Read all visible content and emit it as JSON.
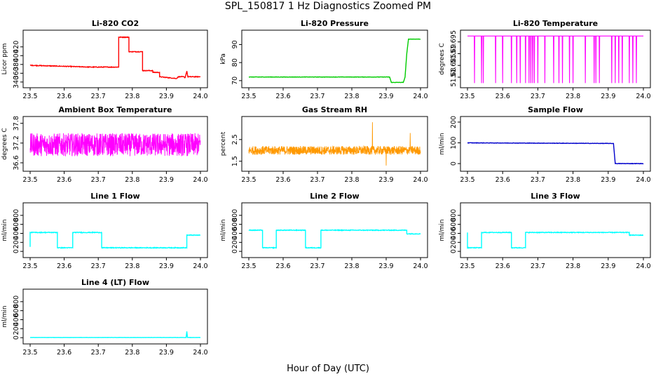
{
  "figure": {
    "title": "SPL_150817  1 Hz Diagnostics Zoomed PM",
    "xlabel": "Hour of Day (UTC)"
  },
  "chart_data": [
    {
      "type": "line",
      "title": "Li-820 CO2",
      "ylabel": "Licor ppm",
      "color": "#ff0000",
      "xlim": [
        23.5,
        24.0
      ],
      "ylim": [
        335,
        450
      ],
      "xticks": [
        23.5,
        23.6,
        23.7,
        23.8,
        23.9,
        24.0
      ],
      "yticks": [
        340,
        360,
        380,
        400,
        420
      ],
      "noise": 0.8,
      "series": [
        {
          "x": [
            23.5,
            23.68,
            23.76,
            23.76,
            23.79,
            23.79,
            23.83,
            23.83,
            23.86,
            23.86,
            23.88,
            23.88,
            23.93,
            23.935,
            23.95,
            23.955,
            23.96,
            23.963,
            23.97,
            24.0
          ],
          "y": [
            378,
            374,
            374,
            442,
            442,
            409,
            409,
            366,
            366,
            362,
            362,
            352,
            348,
            352,
            352,
            350,
            365,
            352,
            352,
            352
          ]
        }
      ]
    },
    {
      "type": "line",
      "title": "Li-820 Pressure",
      "ylabel": "kPa",
      "color": "#00cc00",
      "xlim": [
        23.5,
        24.0
      ],
      "ylim": [
        68,
        96
      ],
      "xticks": [
        23.5,
        23.6,
        23.7,
        23.8,
        23.9,
        24.0
      ],
      "yticks": [
        70,
        80,
        90
      ],
      "noise": 0.1,
      "series": [
        {
          "x": [
            23.5,
            23.91,
            23.915,
            23.95,
            23.955,
            23.96,
            23.965,
            23.97,
            24.0
          ],
          "y": [
            72,
            72,
            69,
            69,
            72,
            85,
            93,
            93,
            93
          ]
        }
      ]
    },
    {
      "type": "line",
      "title": "Li-820 Temperature",
      "ylabel": "degrees C",
      "color": "#ff00ff",
      "xlim": [
        23.5,
        24.0
      ],
      "ylim": [
        51.677,
        51.6985
      ],
      "xticks": [
        23.5,
        23.6,
        23.7,
        23.8,
        23.9,
        24.0
      ],
      "yticks": [
        51.68,
        51.685,
        51.69,
        51.695
      ],
      "baseline": 51.6975,
      "dropouts": [
        23.52,
        23.54,
        23.545,
        23.58,
        23.6,
        23.625,
        23.64,
        23.65,
        23.665,
        23.675,
        23.68,
        23.685,
        23.69,
        23.7,
        23.72,
        23.745,
        23.76,
        23.77,
        23.79,
        23.8,
        23.835,
        23.86,
        23.865,
        23.875,
        23.91,
        23.92,
        23.93,
        23.94,
        23.96,
        23.97,
        23.98
      ]
    },
    {
      "type": "line",
      "title": "Ambient Box Temperature",
      "ylabel": "degrees C",
      "color": "#ff00ff",
      "xlim": [
        23.5,
        24.0
      ],
      "ylim": [
        36.45,
        37.9
      ],
      "xticks": [
        23.5,
        23.6,
        23.7,
        23.8,
        23.9,
        24.0
      ],
      "yticks": [
        36.6,
        37.2,
        37.8
      ],
      "noise_band": [
        36.6,
        37.8
      ],
      "center": 37.15,
      "amp": 0.35
    },
    {
      "type": "line",
      "title": "Gas Stream RH",
      "ylabel": "percent",
      "color": "#ff9900",
      "xlim": [
        23.5,
        24.0
      ],
      "ylim": [
        1.2,
        3.4
      ],
      "xticks": [
        23.5,
        23.6,
        23.7,
        23.8,
        23.9,
        24.0
      ],
      "yticks": [
        1.5,
        2.5
      ],
      "center": 2.0,
      "amp": 0.2,
      "spikes": [
        {
          "x": 23.86,
          "y": 3.3
        },
        {
          "x": 23.9,
          "y": 1.3
        },
        {
          "x": 23.97,
          "y": 2.8
        }
      ]
    },
    {
      "type": "line",
      "title": "Sample Flow",
      "ylabel": "ml/min",
      "color": "#0000cc",
      "xlim": [
        23.5,
        24.0
      ],
      "ylim": [
        -20,
        210
      ],
      "xticks": [
        23.5,
        23.6,
        23.7,
        23.8,
        23.9,
        24.0
      ],
      "yticks": [
        0,
        100,
        200
      ],
      "noise": 1.0,
      "series": [
        {
          "x": [
            23.5,
            23.91,
            23.915,
            23.92,
            24.0
          ],
          "y": [
            100,
            97,
            97,
            0,
            0
          ]
        }
      ]
    },
    {
      "type": "line",
      "title": "Line 1 Flow",
      "ylabel": "ml/min",
      "color": "#00ffff",
      "xlim": [
        23.5,
        24.0
      ],
      "ylim": [
        -60,
        1000
      ],
      "xticks": [
        23.5,
        23.6,
        23.7,
        23.8,
        23.9,
        24.0
      ],
      "yticks": [
        0,
        200,
        400,
        600,
        800
      ],
      "noise": 8,
      "series": [
        {
          "x": [
            23.5,
            23.5,
            23.58,
            23.58,
            23.625,
            23.625,
            23.71,
            23.71,
            23.96,
            23.96,
            24.0
          ],
          "y": [
            100,
            420,
            420,
            80,
            80,
            420,
            420,
            80,
            80,
            360,
            360
          ]
        }
      ]
    },
    {
      "type": "line",
      "title": "Line 2 Flow",
      "ylabel": "ml/min",
      "color": "#00ffff",
      "xlim": [
        23.5,
        24.0
      ],
      "ylim": [
        -60,
        1000
      ],
      "xticks": [
        23.5,
        23.6,
        23.7,
        23.8,
        23.9,
        24.0
      ],
      "yticks": [
        0,
        200,
        400,
        600,
        800
      ],
      "noise": 8,
      "series": [
        {
          "x": [
            23.5,
            23.54,
            23.54,
            23.58,
            23.58,
            23.665,
            23.665,
            23.71,
            23.71,
            23.96,
            23.96,
            24.0
          ],
          "y": [
            470,
            470,
            80,
            80,
            470,
            470,
            80,
            80,
            470,
            470,
            390,
            390
          ]
        }
      ]
    },
    {
      "type": "line",
      "title": "Line 3 Flow",
      "ylabel": "ml/min",
      "color": "#00ffff",
      "xlim": [
        23.5,
        24.0
      ],
      "ylim": [
        -60,
        1000
      ],
      "xticks": [
        23.5,
        23.6,
        23.7,
        23.8,
        23.9,
        24.0
      ],
      "yticks": [
        0,
        200,
        400,
        600,
        800
      ],
      "noise": 8,
      "series": [
        {
          "x": [
            23.5,
            23.5,
            23.54,
            23.54,
            23.625,
            23.625,
            23.665,
            23.665,
            23.96,
            23.96,
            24.0
          ],
          "y": [
            420,
            80,
            80,
            420,
            420,
            80,
            80,
            420,
            420,
            360,
            360
          ]
        }
      ]
    },
    {
      "type": "line",
      "title": "Line 4 (LT) Flow",
      "ylabel": "ml/min",
      "color": "#00ffff",
      "xlim": [
        23.5,
        24.0
      ],
      "ylim": [
        -60,
        1000
      ],
      "xticks": [
        23.5,
        23.6,
        23.7,
        23.8,
        23.9,
        24.0
      ],
      "yticks": [
        0,
        200,
        400,
        600,
        800
      ],
      "noise": 2,
      "series": [
        {
          "x": [
            23.5,
            23.958,
            23.96,
            23.962,
            24.0
          ],
          "y": [
            5,
            5,
            140,
            5,
            5
          ]
        }
      ]
    }
  ]
}
